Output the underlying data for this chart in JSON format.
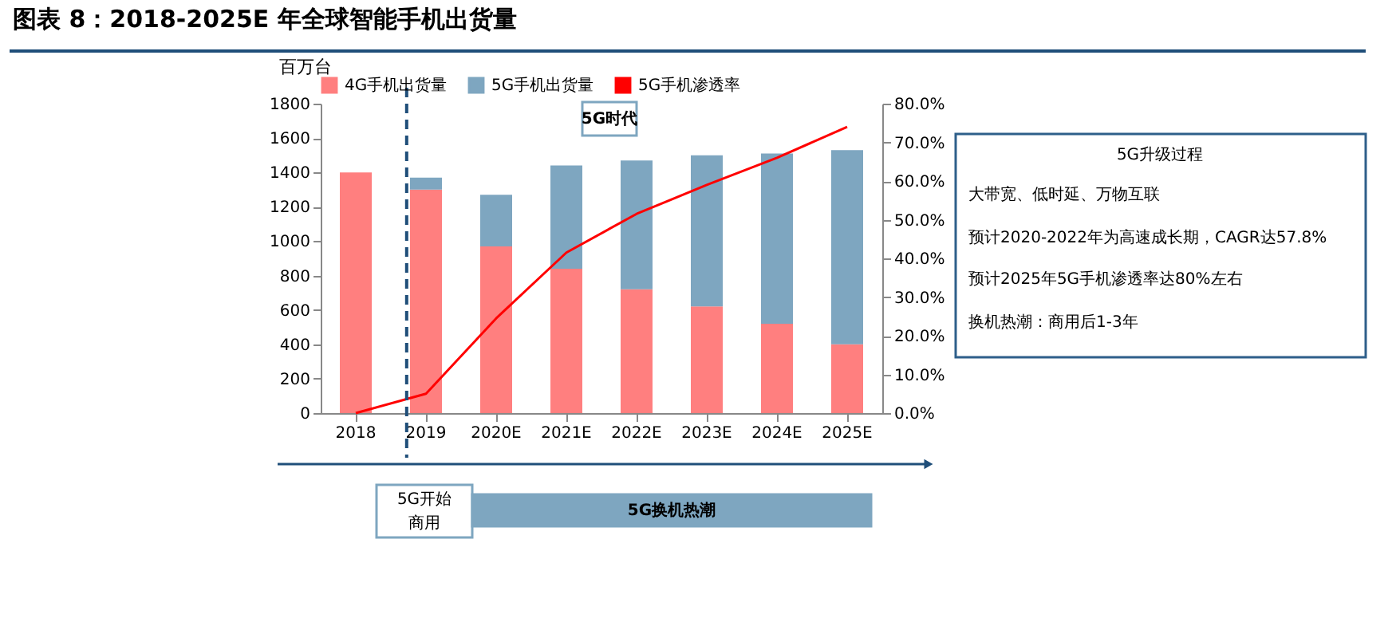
{
  "chart_data": {
    "type": "bar",
    "title": "图表 8：2018-2025E 年全球智能手机出货量",
    "ylabel": "百万台",
    "categories": [
      "2018",
      "2019",
      "2020E",
      "2021E",
      "2022E",
      "2023E",
      "2024E",
      "2025E"
    ],
    "stacked": true,
    "series": [
      {
        "name": "4G手机出货量",
        "color": "#ff7f7f",
        "values": [
          1400,
          1300,
          970,
          840,
          720,
          620,
          520,
          400
        ]
      },
      {
        "name": "5G手机出货量",
        "color": "#7ea6c0",
        "values": [
          0,
          70,
          300,
          600,
          750,
          880,
          990,
          1130
        ]
      },
      {
        "name": "5G手机渗透率",
        "type": "line",
        "axis": "y2",
        "color": "#ff0000",
        "values": [
          0,
          5,
          24.5,
          41.5,
          51.5,
          59,
          66,
          74
        ]
      }
    ],
    "ylim": [
      0,
      1800
    ],
    "yticks": [
      0,
      200,
      400,
      600,
      800,
      1000,
      1200,
      1400,
      1600,
      1800
    ],
    "y2lim": [
      0,
      80
    ],
    "y2ticks": [
      {
        "value": 0,
        "label": "0.0%"
      },
      {
        "value": 10,
        "label": "10.0%"
      },
      {
        "value": 20,
        "label": "20.0%"
      },
      {
        "value": 30,
        "label": "30.0%"
      },
      {
        "value": 40,
        "label": "40.0%"
      },
      {
        "value": 50,
        "label": "50.0%"
      },
      {
        "value": 60,
        "label": "60.0%"
      },
      {
        "value": 70,
        "label": "70.0%"
      },
      {
        "value": 80,
        "label": "80.0%"
      }
    ],
    "legend": "top",
    "grid": false,
    "marker": "none",
    "line_style": "solid",
    "ref_lines": [
      {
        "axis": "x",
        "value": "2019",
        "line_style": "dashed",
        "color": "#1f4e79"
      }
    ],
    "annotations": [
      "5G时代",
      "5G升级过程",
      "大带宽、低时延、万物互联",
      "预计2020-2022年为高速成长期，CAGR达57.8%",
      "预计2025年5G手机渗透率达80%左右",
      "换机热潮：商用后1-3年",
      "5G开始",
      "商用",
      "5G换机热潮"
    ]
  }
}
